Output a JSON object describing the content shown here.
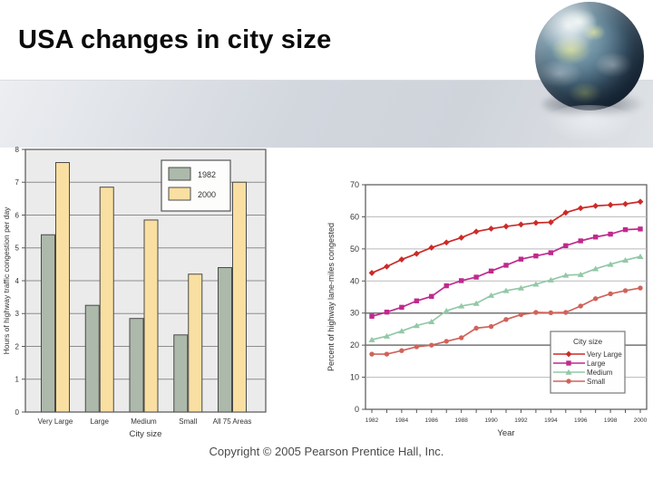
{
  "slide": {
    "title": "USA changes in city size",
    "copyright": "Copyright © 2005 Pearson Prentice Hall, Inc."
  },
  "chart_data": [
    {
      "name": "hours-of-congestion-bar-chart",
      "type": "bar",
      "categories": [
        "Very Large",
        "Large",
        "Medium",
        "Small",
        "All 75 Areas"
      ],
      "series": [
        {
          "name": "1982",
          "color": "#acb9ab",
          "values": [
            5.4,
            3.25,
            2.85,
            2.35,
            4.4
          ]
        },
        {
          "name": "2000",
          "color": "#f9dfa1",
          "values": [
            7.6,
            6.85,
            5.85,
            4.2,
            7.0
          ]
        }
      ],
      "xlabel": "City size",
      "ylabel": "Hours of highway traffic congestion per day",
      "ylim": [
        0,
        8
      ],
      "ytick_step": 1,
      "grid": true,
      "legend_position": "top-right",
      "plot_bg": "#ebebeb",
      "gridline_color": "#8c8c8c",
      "frame_color": "#555555"
    },
    {
      "name": "percent-lane-miles-congested-line-chart",
      "type": "line",
      "x": [
        1982,
        1983,
        1984,
        1985,
        1986,
        1987,
        1988,
        1989,
        1990,
        1991,
        1992,
        1993,
        1994,
        1995,
        1996,
        1997,
        1998,
        1999,
        2000
      ],
      "xtick_labels": [
        "1982",
        "1984",
        "1986",
        "1988",
        "1990",
        "1992",
        "1994",
        "1996",
        "1998",
        "2000"
      ],
      "series": [
        {
          "name": "Very Large",
          "marker": "diamond",
          "color": "#cc2b27",
          "values": [
            42.5,
            44.5,
            46.7,
            48.5,
            50.4,
            52.0,
            53.5,
            55.4,
            56.3,
            57.0,
            57.6,
            58.1,
            58.3,
            61.3,
            62.7,
            63.4,
            63.7,
            64.0,
            64.7
          ]
        },
        {
          "name": "Large",
          "marker": "square",
          "color": "#bf2a8d",
          "values": [
            29.0,
            30.3,
            31.8,
            33.8,
            35.2,
            38.5,
            40.1,
            41.2,
            43.1,
            44.9,
            46.8,
            47.8,
            48.8,
            51.0,
            52.5,
            53.7,
            54.6,
            56.0,
            56.2
          ]
        },
        {
          "name": "Medium",
          "marker": "triangle",
          "color": "#93c8a7",
          "values": [
            21.7,
            22.8,
            24.4,
            26.1,
            27.3,
            30.7,
            32.2,
            33.0,
            35.5,
            37.0,
            37.8,
            39.0,
            40.3,
            41.8,
            42.0,
            43.8,
            45.2,
            46.5,
            47.6
          ]
        },
        {
          "name": "Small",
          "marker": "circle",
          "color": "#d0635a",
          "values": [
            17.2,
            17.2,
            18.3,
            19.5,
            20.0,
            21.2,
            22.3,
            25.3,
            25.8,
            28.0,
            29.5,
            30.2,
            30.1,
            30.2,
            32.2,
            34.5,
            36.0,
            37.0,
            37.8
          ]
        }
      ],
      "xlabel": "Year",
      "ylabel": "Percent of highway lane-miles congested",
      "ylim": [
        0,
        70
      ],
      "ytick_step": 10,
      "grid": true,
      "emphasized_gridlines": [
        20,
        30
      ],
      "legend_title": "City size",
      "legend_position": "bottom-right",
      "plot_bg": "#ffffff",
      "gridline_color": "#b9b9b9",
      "emphasized_gridline_color": "#757575",
      "frame_color": "#555555"
    }
  ]
}
